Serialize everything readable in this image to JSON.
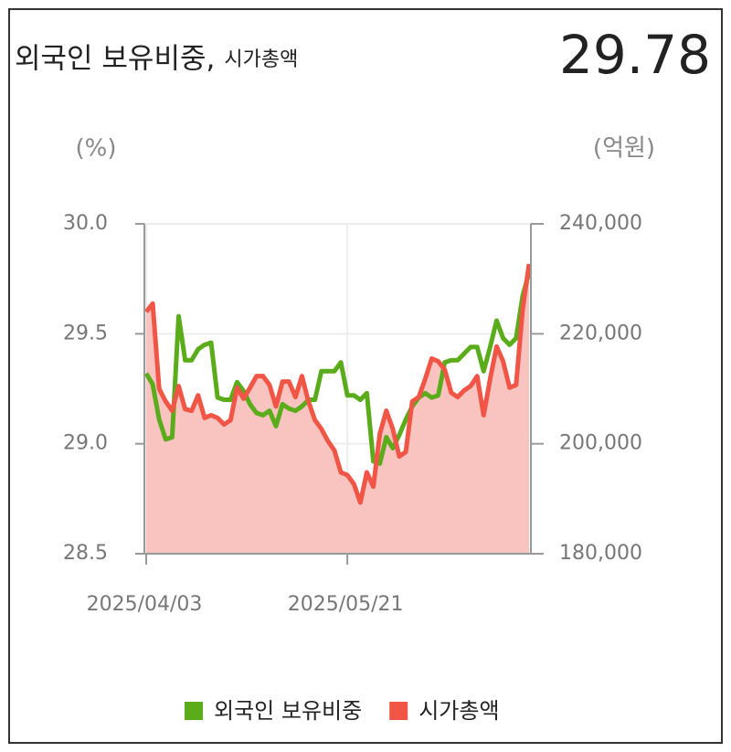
{
  "chart_data": {
    "type": "line",
    "title": "외국인 보유비중,",
    "subtitle": "시가총액",
    "current_value": 29.78,
    "y_label": "(%)",
    "y2_label": "(억원)",
    "categories": [
      "2025/04/03",
      null,
      null,
      null,
      null,
      null,
      null,
      null,
      null,
      null,
      null,
      null,
      null,
      null,
      null,
      null,
      null,
      null,
      null,
      null,
      null,
      null,
      null,
      null,
      null,
      null,
      null,
      null,
      null,
      null,
      null,
      "2025/05/21",
      null,
      null,
      null,
      null,
      null,
      null,
      null,
      null,
      null,
      null,
      null,
      null,
      null,
      null,
      null,
      null,
      null,
      null,
      null,
      null,
      null,
      null,
      null,
      null,
      null,
      null,
      null,
      null
    ],
    "series": [
      {
        "name": "외국인 보유비중",
        "color": "#5aac1a",
        "axis": "y",
        "values": [
          29.32,
          29.27,
          29.11,
          29.02,
          29.03,
          29.58,
          29.38,
          29.38,
          29.43,
          29.45,
          29.46,
          29.21,
          29.2,
          29.2,
          29.28,
          29.24,
          29.18,
          29.14,
          29.13,
          29.15,
          29.08,
          29.18,
          29.16,
          29.15,
          29.17,
          29.2,
          29.2,
          29.33,
          29.33,
          29.33,
          29.37,
          29.22,
          29.22,
          29.2,
          29.23,
          28.92,
          28.91,
          29.03,
          28.98,
          29.04,
          29.11,
          29.17,
          29.21,
          29.23,
          29.21,
          29.22,
          29.37,
          29.38,
          29.38,
          29.41,
          29.44,
          29.44,
          29.33,
          29.44,
          29.56,
          29.48,
          29.45,
          29.48,
          29.67,
          29.78
        ]
      },
      {
        "name": "시가총액",
        "color": "#f05545",
        "area_color": "#f9c3c0",
        "axis": "y2",
        "values": [
          224000,
          225500,
          210000,
          207700,
          206000,
          210500,
          206300,
          206000,
          208800,
          204700,
          205200,
          204700,
          203500,
          204300,
          210200,
          208200,
          210200,
          212300,
          212300,
          210700,
          206800,
          211300,
          211300,
          208500,
          212300,
          207700,
          204300,
          202700,
          200500,
          198800,
          194800,
          194300,
          192700,
          189300,
          194800,
          192200,
          201800,
          206000,
          202700,
          197700,
          198500,
          207700,
          208500,
          211800,
          215500,
          215000,
          213500,
          209300,
          208500,
          209700,
          210500,
          212300,
          205200,
          211800,
          217700,
          215000,
          210200,
          210700,
          224300,
          232700
        ]
      }
    ],
    "ylim": [
      28.5,
      30
    ],
    "yticks": [
      {
        "value": 30,
        "label": "30.0"
      },
      29.5,
      {
        "value": 29,
        "label": "29.0"
      },
      28.5
    ],
    "y2lim": [
      180000,
      240000
    ],
    "y2ticks": [
      {
        "value": 240000,
        "label": "240,000"
      },
      {
        "value": 220000,
        "label": "220,000"
      },
      {
        "value": 200000,
        "label": "200,000"
      },
      {
        "value": 180000,
        "label": "180,000"
      }
    ],
    "grid": true,
    "legend": "bottom"
  }
}
